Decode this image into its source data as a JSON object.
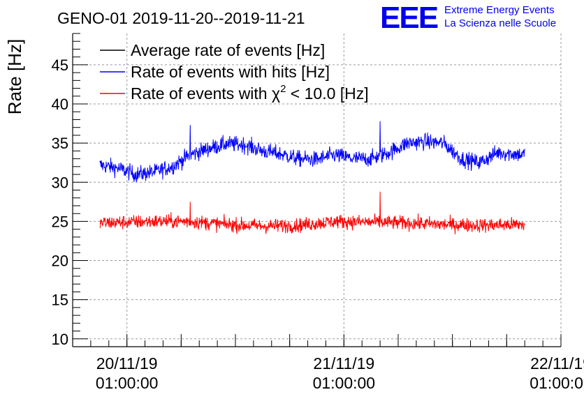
{
  "chart_data": {
    "type": "line",
    "title": "GENO-01 2019-11-20--2019-11-21",
    "ylabel": "Rate [Hz]",
    "xlabel": "",
    "ylim": [
      9,
      49
    ],
    "yticks": [
      10,
      15,
      20,
      25,
      30,
      35,
      40,
      45
    ],
    "x_axis": {
      "type": "datetime",
      "range": [
        "2019-11-19 19:00:00",
        "2019-11-22 01:00:00"
      ],
      "tick_labels": [
        {
          "date": "20/11/19",
          "time": "01:00:00",
          "at": "2019-11-20 01:00:00"
        },
        {
          "date": "21/11/19",
          "time": "01:00:00",
          "at": "2019-11-21 01:00:00"
        },
        {
          "date": "22/11/19",
          "time": "01:00:00",
          "at": "2019-11-22 01:00:00"
        }
      ]
    },
    "grid": true,
    "legend_position": "top-left",
    "legend": [
      {
        "text": "Average rate of events [Hz]",
        "color": "#000000"
      },
      {
        "text": "Rate of events with hits [Hz]",
        "color": "#0000ff"
      },
      {
        "text_prefix": "Rate of events with ",
        "symbol": "χ",
        "sup": "2",
        "text_suffix": " < 10.0 [Hz]",
        "color": "#ff0000"
      }
    ],
    "series": [
      {
        "name": "Rate of events with hits [Hz]",
        "color": "#0000ff",
        "x": [
          "2019-11-19 22:00",
          "2019-11-20 00:00",
          "2019-11-20 02:00",
          "2019-11-20 04:00",
          "2019-11-20 06:00",
          "2019-11-20 08:00",
          "2019-11-20 10:00",
          "2019-11-20 12:00",
          "2019-11-20 14:00",
          "2019-11-20 16:00",
          "2019-11-20 18:00",
          "2019-11-20 20:00",
          "2019-11-20 22:00",
          "2019-11-21 00:00",
          "2019-11-21 02:00",
          "2019-11-21 04:00",
          "2019-11-21 06:00",
          "2019-11-21 08:00",
          "2019-11-21 10:00",
          "2019-11-21 12:00",
          "2019-11-21 14:00",
          "2019-11-21 16:00",
          "2019-11-21 18:00",
          "2019-11-21 20:00",
          "2019-11-21 21:00"
        ],
        "y": [
          32.2,
          31.8,
          31.0,
          31.3,
          32.0,
          33.5,
          34.3,
          34.9,
          34.8,
          34.0,
          33.6,
          33.0,
          32.9,
          33.5,
          33.0,
          33.0,
          33.8,
          35.0,
          35.2,
          35.0,
          33.0,
          32.5,
          33.8,
          33.6,
          33.5
        ],
        "noise": 0.85,
        "spikes": [
          {
            "x": "2019-11-20 08:00",
            "y": 37.3
          },
          {
            "x": "2019-11-21 05:00",
            "y": 37.8
          }
        ]
      },
      {
        "name": "Rate of events with χ2 < 10.0 [Hz]",
        "color": "#ff0000",
        "x": [
          "2019-11-19 22:00",
          "2019-11-20 04:00",
          "2019-11-20 08:00",
          "2019-11-20 12:00",
          "2019-11-20 16:00",
          "2019-11-20 20:00",
          "2019-11-21 00:00",
          "2019-11-21 04:00",
          "2019-11-21 08:00",
          "2019-11-21 12:00",
          "2019-11-21 16:00",
          "2019-11-21 21:00"
        ],
        "y": [
          24.8,
          25.0,
          25.0,
          24.6,
          24.4,
          24.5,
          25.0,
          24.9,
          24.8,
          24.6,
          24.5,
          24.6
        ],
        "noise": 0.75,
        "spikes": [
          {
            "x": "2019-11-20 08:00",
            "y": 27.5
          },
          {
            "x": "2019-11-21 05:00",
            "y": 28.8
          }
        ]
      }
    ]
  },
  "branding": {
    "logo_text": "EEE",
    "line1": "Extreme Energy Events",
    "line2": "La Scienza nelle Scuole",
    "color": "#0000ee"
  }
}
